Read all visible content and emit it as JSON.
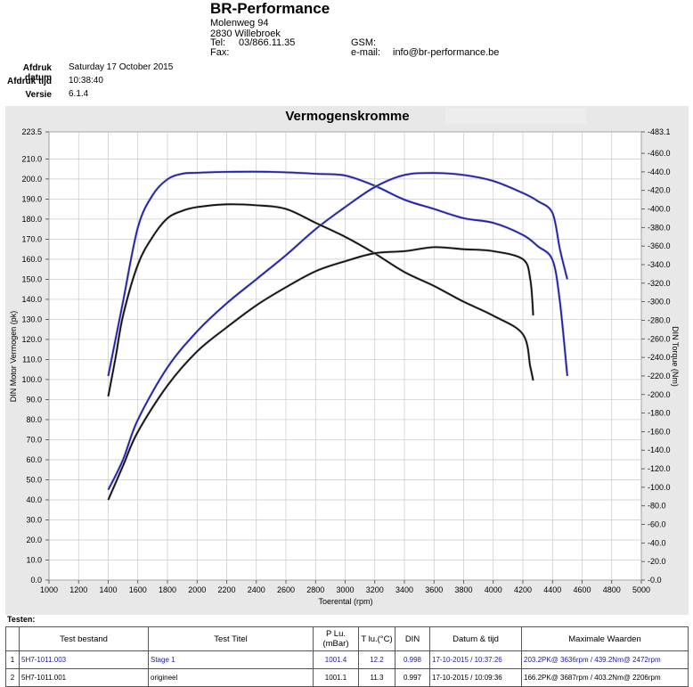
{
  "header": {
    "company": "BR-Performance",
    "street": "Molenweg 94",
    "city": "2830 Willebroek",
    "tel_label": "Tel:",
    "tel": "03/866.11.35",
    "gsm_label": "GSM:",
    "fax_label": "Fax:",
    "email_label": "e-mail:",
    "email": "info@br-performance.be"
  },
  "meta": {
    "date_label": "Afdruk datum",
    "date": "Saturday 17 October 2015",
    "time_label": "Afdruk tijd",
    "time": "10:38:40",
    "version_label": "Versie",
    "version": "6.1.4"
  },
  "chart_data": {
    "type": "line",
    "title": "Vermogenskromme",
    "xlabel": "Toerental (rpm)",
    "ylabel_left": "DIN Motor Vermogen (pk)",
    "ylabel_right": "DIN Torque (Nm)",
    "xlim": [
      1000,
      5000
    ],
    "ylim_left": [
      0,
      223.5
    ],
    "ylim_right": [
      0,
      483.1
    ],
    "x_ticks": [
      "1000",
      "1200",
      "1400",
      "1600",
      "1800",
      "2000",
      "2200",
      "2400",
      "2600",
      "2800",
      "3000",
      "3200",
      "3400",
      "3600",
      "3800",
      "4000",
      "4200",
      "4400",
      "4600",
      "4800",
      "5000"
    ],
    "y_left_ticks": [
      "0.0",
      "10.0",
      "20.0",
      "30.0",
      "40.0",
      "50.0",
      "60.0",
      "70.0",
      "80.0",
      "90.0",
      "100.0",
      "110.0",
      "120.0",
      "130.0",
      "140.0",
      "150.0",
      "160.0",
      "170.0",
      "180.0",
      "190.0",
      "200.0",
      "210.0",
      "223.5"
    ],
    "y_right_ticks": [
      "0.0",
      "20.0",
      "40.0",
      "60.0",
      "80.0",
      "100.0",
      "120.0",
      "140.0",
      "160.0",
      "180.0",
      "200.0",
      "220.0",
      "240.0",
      "260.0",
      "280.0",
      "300.0",
      "320.0",
      "340.0",
      "360.0",
      "380.0",
      "400.0",
      "420.0",
      "440.0",
      "460.0",
      "483.1"
    ],
    "grid": true,
    "series": [
      {
        "axis": "right",
        "color": "#1f22a8",
        "x": [
          1400,
          1450,
          1500,
          1600,
          1700,
          1800,
          1900,
          2000,
          2200,
          2500,
          2800,
          3000,
          3200,
          3400,
          3600,
          3800,
          4000,
          4200,
          4300,
          4400,
          4450,
          4500
        ],
        "y": [
          220,
          260,
          300,
          380,
          415,
          432,
          438,
          439,
          440,
          440,
          438,
          436,
          425,
          410,
          400,
          390,
          385,
          372,
          360,
          345,
          300,
          220
        ]
      },
      {
        "axis": "left",
        "color": "#1f22a8",
        "x": [
          1400,
          1500,
          1600,
          1800,
          2000,
          2200,
          2400,
          2600,
          2800,
          3000,
          3200,
          3400,
          3600,
          3800,
          4000,
          4200,
          4300,
          4400,
          4450,
          4500
        ],
        "y": [
          45,
          60,
          80,
          106,
          124,
          138,
          150,
          162,
          175,
          186,
          196,
          202,
          203,
          202,
          199,
          193,
          189,
          183,
          165,
          150
        ]
      },
      {
        "axis": "right",
        "color": "#111111",
        "x": [
          1400,
          1450,
          1500,
          1600,
          1700,
          1800,
          1900,
          2000,
          2200,
          2400,
          2600,
          2800,
          3000,
          3200,
          3400,
          3600,
          3800,
          4000,
          4200,
          4250,
          4270
        ],
        "y": [
          198,
          240,
          285,
          340,
          370,
          390,
          398,
          402,
          405,
          404,
          400,
          385,
          370,
          352,
          332,
          317,
          300,
          285,
          265,
          230,
          215
        ]
      },
      {
        "axis": "left",
        "color": "#111111",
        "x": [
          1400,
          1500,
          1600,
          1800,
          2000,
          2200,
          2400,
          2600,
          2800,
          3000,
          3200,
          3400,
          3600,
          3800,
          4000,
          4200,
          4250,
          4270
        ],
        "y": [
          40,
          57,
          74,
          97,
          114,
          126,
          137,
          146,
          154,
          159,
          163,
          164,
          166,
          165,
          164,
          160,
          150,
          132
        ]
      }
    ]
  },
  "table": {
    "testen_label": "Testen:",
    "columns": [
      "",
      "Test bestand",
      "Test Titel",
      "P Lu.(mBar)",
      "T lu.(°C)",
      "DIN",
      "Datum & tijd",
      "Maximale Waarden"
    ],
    "rows": [
      [
        "1",
        "5H7-1011.003",
        "Stage 1",
        "1001.4",
        "12.2",
        "0.998",
        "17-10-2015 / 10:37:26",
        "203.2PK@ 3636rpm / 439.2Nm@ 2472rpm"
      ],
      [
        "2",
        "5H7-1011.001",
        "origineel",
        "1001.1",
        "11.3",
        "0.997",
        "17-10-2015 / 10:09:36",
        "166.2PK@ 3687rpm / 403.2Nm@ 2206rpm"
      ]
    ]
  }
}
